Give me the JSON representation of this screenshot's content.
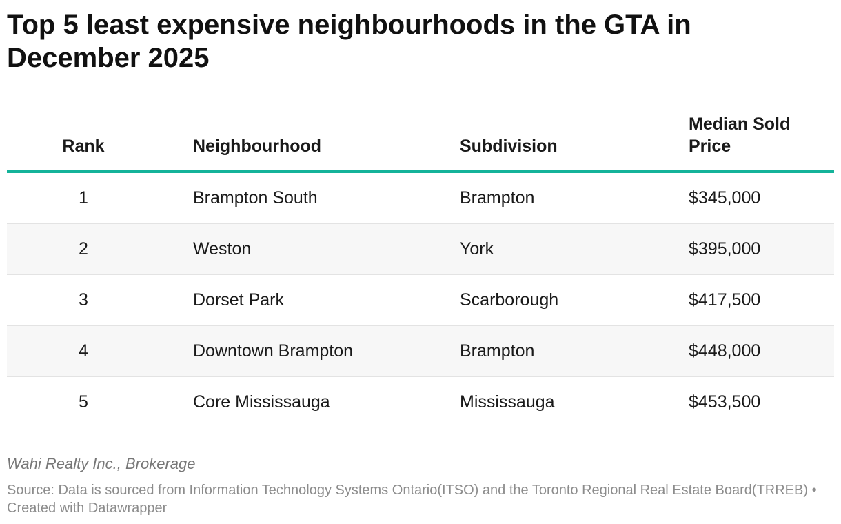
{
  "chart_data": {
    "type": "table",
    "title": "Top 5 least expensive neighbourhoods in the GTA in December 2025",
    "columns": [
      "Rank",
      "Neighbourhood",
      "Subdivision",
      "Median Sold Price"
    ],
    "rows": [
      {
        "rank": "1",
        "neighbourhood": "Brampton South",
        "subdivision": "Brampton",
        "price": "$345,000"
      },
      {
        "rank": "2",
        "neighbourhood": "Weston",
        "subdivision": "York",
        "price": "$395,000"
      },
      {
        "rank": "3",
        "neighbourhood": "Dorset Park",
        "subdivision": "Scarborough",
        "price": "$417,500"
      },
      {
        "rank": "4",
        "neighbourhood": "Downtown Brampton",
        "subdivision": "Brampton",
        "price": "$448,000"
      },
      {
        "rank": "5",
        "neighbourhood": "Core Mississauga",
        "subdivision": "Mississauga",
        "price": "$453,500"
      }
    ],
    "credit": "Wahi Realty Inc., Brokerage",
    "source": "Source: Data is sourced from Information Technology Systems Ontario(ITSO) and the Toronto Regional Real Estate Board(TRREB) • Created with Datawrapper",
    "header_rule_color": "#14b39a"
  }
}
